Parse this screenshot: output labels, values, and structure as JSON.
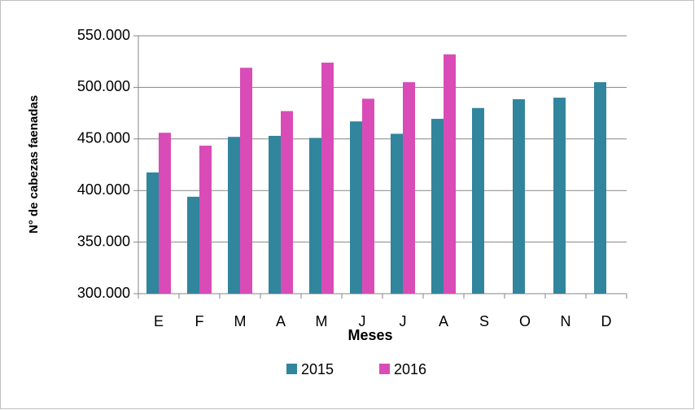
{
  "chart_data": {
    "type": "bar",
    "x_label": "Meses",
    "y_label": "N° de cabezas faenadas",
    "categories": [
      "E",
      "F",
      "M",
      "A",
      "M",
      "J",
      "J",
      "A",
      "S",
      "O",
      "N",
      "D"
    ],
    "series": [
      {
        "name": "2015",
        "color": "#31859c",
        "values": [
          417500,
          394000,
          452000,
          453000,
          451000,
          467000,
          455000,
          469500,
          480000,
          488500,
          490000,
          505000
        ]
      },
      {
        "name": "2016",
        "color": "#d94cb8",
        "values": [
          456000,
          443500,
          519000,
          477000,
          524000,
          489000,
          505000,
          532000,
          null,
          null,
          null,
          null
        ]
      }
    ],
    "ylim": [
      300000,
      550000
    ],
    "yticks": [
      {
        "value": 300000,
        "label": "300.000"
      },
      {
        "value": 350000,
        "label": "350.000"
      },
      {
        "value": 400000,
        "label": "400.000"
      },
      {
        "value": 450000,
        "label": "450.000"
      },
      {
        "value": 500000,
        "label": "500.000"
      },
      {
        "value": 550000,
        "label": "550.000"
      }
    ],
    "grid": true,
    "legend": "bottom"
  }
}
